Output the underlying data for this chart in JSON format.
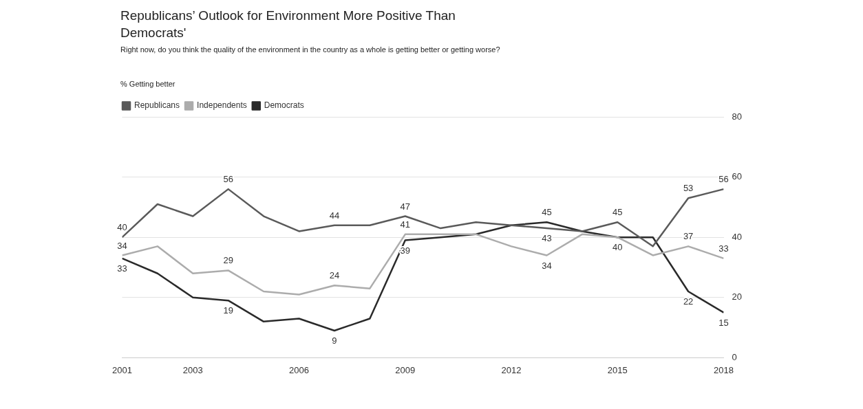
{
  "chart_data": {
    "type": "line",
    "title": "Republicans’ Outlook for Environment More Positive Than Democrats'",
    "subtitle": "Right now, do you think the quality of the environment in the country as a whole is getting better or getting worse?",
    "ylabel": "% Getting better",
    "x": [
      2001,
      2002,
      2003,
      2004,
      2005,
      2006,
      2007,
      2008,
      2009,
      2010,
      2011,
      2012,
      2013,
      2014,
      2015,
      2016,
      2017,
      2018
    ],
    "xlim": [
      2001,
      2018
    ],
    "xticks": [
      2001,
      2003,
      2006,
      2009,
      2012,
      2015,
      2018
    ],
    "ylim": [
      0,
      80
    ],
    "yticks": [
      0,
      20,
      40,
      60,
      80
    ],
    "grid": "y",
    "legend": "top left",
    "marker": "none",
    "line_style": "solid",
    "series": [
      {
        "name": "Republicans",
        "color": "#5a5a5a",
        "values": [
          40,
          51,
          47,
          56,
          47,
          42,
          44,
          44,
          47,
          43,
          45,
          44,
          43,
          42,
          45,
          37,
          53,
          56
        ],
        "value_labels": [
          "40",
          null,
          null,
          "56",
          null,
          null,
          "44",
          null,
          "47",
          null,
          null,
          null,
          "43",
          null,
          "45",
          null,
          "53",
          "56"
        ]
      },
      {
        "name": "Independents",
        "color": "#acacac",
        "values": [
          34,
          37,
          28,
          29,
          22,
          21,
          24,
          23,
          41,
          41,
          41,
          37,
          34,
          41,
          40,
          34,
          37,
          33
        ],
        "value_labels": [
          "34",
          null,
          null,
          "29",
          null,
          null,
          "24",
          null,
          "41",
          null,
          null,
          null,
          "34",
          null,
          null,
          null,
          "37",
          "33"
        ]
      },
      {
        "name": "Democrats",
        "color": "#2a2a2a",
        "values": [
          33,
          28,
          20,
          19,
          12,
          13,
          9,
          13,
          39,
          40,
          41,
          44,
          45,
          42,
          40,
          40,
          22,
          15
        ],
        "value_labels": [
          "33",
          null,
          null,
          "19",
          null,
          null,
          "9",
          null,
          "39",
          null,
          null,
          null,
          "45",
          null,
          "40",
          null,
          "22",
          "15"
        ]
      }
    ]
  }
}
